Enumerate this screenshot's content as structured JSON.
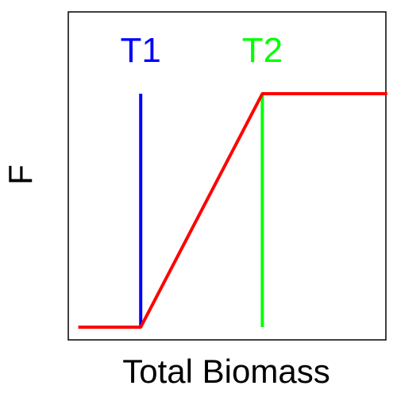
{
  "chart_data": {
    "type": "line",
    "title": "",
    "xlabel": "Total Biomass",
    "ylabel": "F",
    "grid": false,
    "xlim": [
      0,
      1
    ],
    "ylim": [
      0,
      1
    ],
    "series": [
      {
        "color": "#ff0000",
        "x": [
          0.04,
          0.23,
          0.6,
          0.98
        ],
        "y": [
          0.0,
          0.0,
          1.0,
          1.0
        ]
      }
    ],
    "thresholds": [
      {
        "label": "T1",
        "x": 0.23,
        "y_min": 0.0,
        "y_max": 1.0,
        "color": "#0000ff"
      },
      {
        "label": "T2",
        "x": 0.6,
        "y_min": 0.0,
        "y_max": 1.0,
        "color": "#00ff00"
      }
    ]
  }
}
